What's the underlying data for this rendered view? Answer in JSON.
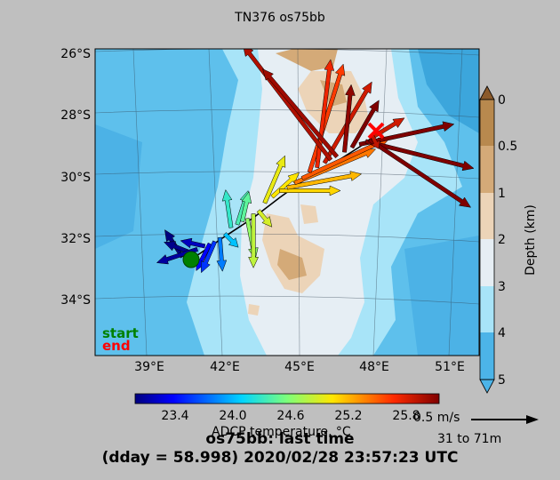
{
  "title": "TN376 os75bb",
  "map": {
    "lat_ticks": [
      "26°S",
      "28°S",
      "30°S",
      "32°S",
      "34°S"
    ],
    "lon_ticks": [
      "39°E",
      "42°E",
      "45°E",
      "48°E",
      "51°E"
    ],
    "start_label": "start",
    "end_label": "end"
  },
  "depth_colorbar": {
    "label": "Depth (km)",
    "ticks": [
      "0",
      "0.5",
      "1",
      "2",
      "3",
      "4",
      "5"
    ],
    "colors": [
      "#8b5a2b",
      "#b8894e",
      "#d4aa78",
      "#ecd4b8",
      "#e6eef4",
      "#a8e4f8",
      "#72caf0",
      "#4cb4e8"
    ]
  },
  "temp_colorbar": {
    "label": "ADCP temperature, °C",
    "ticks": [
      "23.4",
      "24.0",
      "24.6",
      "25.2",
      "25.8"
    ]
  },
  "reference": {
    "speed": "0.5 m/s",
    "depth_range": "31 to 71m"
  },
  "footer": {
    "line1": "os75bb: last time",
    "line2": "(dday = 58.998) 2020/02/28 23:57:23 UTC"
  },
  "vectors": [
    {
      "lat": -32.75,
      "lon": 40.5,
      "u": -0.13,
      "v": 0.2,
      "t": 23.2
    },
    {
      "lat": -32.62,
      "lon": 40.85,
      "u": -0.2,
      "v": 0.08,
      "t": 23.22
    },
    {
      "lat": -32.5,
      "lon": 41.1,
      "u": -0.3,
      "v": -0.1,
      "t": 23.25
    },
    {
      "lat": -32.4,
      "lon": 41.4,
      "u": -0.18,
      "v": 0.04,
      "t": 23.3
    },
    {
      "lat": -32.32,
      "lon": 41.6,
      "u": -0.1,
      "v": -0.2,
      "t": 23.4
    },
    {
      "lat": -32.25,
      "lon": 41.8,
      "u": -0.1,
      "v": -0.23,
      "t": 23.55
    },
    {
      "lat": -32.12,
      "lon": 42.0,
      "u": 0.02,
      "v": -0.25,
      "t": 23.75
    },
    {
      "lat": -32.0,
      "lon": 42.2,
      "u": 0.1,
      "v": -0.1,
      "t": 23.95
    },
    {
      "lat": -31.8,
      "lon": 42.45,
      "u": -0.04,
      "v": 0.28,
      "t": 24.25
    },
    {
      "lat": -31.7,
      "lon": 42.7,
      "u": 0.08,
      "v": 0.25,
      "t": 24.35
    },
    {
      "lat": -31.6,
      "lon": 42.9,
      "u": 0.05,
      "v": 0.22,
      "t": 24.45
    },
    {
      "lat": -31.5,
      "lon": 43.1,
      "u": 0.06,
      "v": -0.3,
      "t": 24.7
    },
    {
      "lat": -31.35,
      "lon": 43.35,
      "u": 0.0,
      "v": -0.4,
      "t": 24.9
    },
    {
      "lat": -31.25,
      "lon": 43.55,
      "u": 0.1,
      "v": -0.12,
      "t": 25.0
    },
    {
      "lat": -31.0,
      "lon": 43.8,
      "u": 0.15,
      "v": 0.35,
      "t": 25.1
    },
    {
      "lat": -30.8,
      "lon": 44.1,
      "u": 0.2,
      "v": 0.18,
      "t": 25.2
    },
    {
      "lat": -30.6,
      "lon": 44.4,
      "u": 0.45,
      "v": 0.0,
      "t": 25.25
    },
    {
      "lat": -30.5,
      "lon": 44.7,
      "u": 0.55,
      "v": 0.1,
      "t": 25.35
    },
    {
      "lat": -30.35,
      "lon": 45.0,
      "u": 0.6,
      "v": 0.25,
      "t": 25.55
    },
    {
      "lat": -30.2,
      "lon": 45.3,
      "u": 0.65,
      "v": 0.3,
      "t": 25.65
    },
    {
      "lat": -30.0,
      "lon": 45.6,
      "u": 0.25,
      "v": 0.8,
      "t": 25.75
    },
    {
      "lat": -29.85,
      "lon": 45.9,
      "u": 0.1,
      "v": 0.8,
      "t": 25.85
    },
    {
      "lat": -29.7,
      "lon": 46.2,
      "u": 0.35,
      "v": 0.6,
      "t": 25.95
    },
    {
      "lat": -29.6,
      "lon": 46.45,
      "u": -0.65,
      "v": 0.85,
      "t": 26.05
    },
    {
      "lat": -29.5,
      "lon": 46.7,
      "u": -0.55,
      "v": 0.65,
      "t": 26.1
    },
    {
      "lat": -29.35,
      "lon": 47.0,
      "u": 0.05,
      "v": 0.5,
      "t": 26.15
    },
    {
      "lat": -29.2,
      "lon": 47.3,
      "u": 0.2,
      "v": 0.35,
      "t": 26.2
    },
    {
      "lat": -29.1,
      "lon": 47.6,
      "u": 0.7,
      "v": 0.15,
      "t": 26.2
    },
    {
      "lat": -29.0,
      "lon": 47.85,
      "u": 0.8,
      "v": -0.2,
      "t": 26.2
    },
    {
      "lat": -28.95,
      "lon": 48.0,
      "u": 0.75,
      "v": -0.5,
      "t": 26.2
    },
    {
      "lat": -28.9,
      "lon": 48.05,
      "u": 0.25,
      "v": 0.15,
      "t": 25.95
    },
    {
      "lat": -28.8,
      "lon": 48.1,
      "u": 0.05,
      "v": -0.1,
      "t": 26.0
    }
  ]
}
